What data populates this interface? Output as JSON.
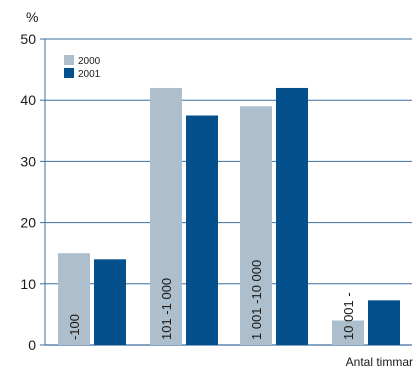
{
  "chart_data": {
    "type": "bar",
    "categories": [
      "-100",
      "101 -1 000",
      "1 001 -10 000",
      "10 001 -"
    ],
    "series": [
      {
        "name": "2000",
        "values": [
          15,
          42,
          39,
          4
        ],
        "color": "#adbfcc"
      },
      {
        "name": "2001",
        "values": [
          14,
          37.5,
          42,
          7.3
        ],
        "color": "#03508c"
      }
    ],
    "ylabel": "%",
    "xlabel": "Antal timmar",
    "ylim": [
      0,
      50
    ],
    "yticks": [
      0,
      10,
      20,
      30,
      40,
      50
    ],
    "grid": true,
    "grid_color": "#3d6fa0",
    "legend_position": "top-left"
  }
}
